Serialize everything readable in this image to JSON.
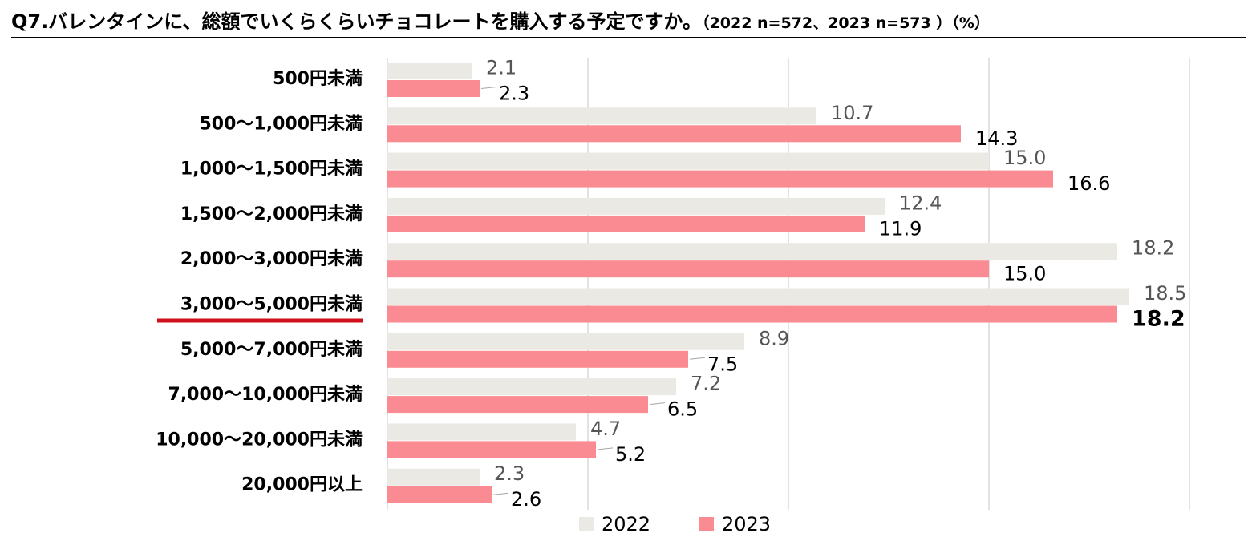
{
  "title": {
    "main": "Q7.バレンタインに、総額でいくらくらいチョコレートを購入する予定ですか。",
    "sub": "（2022 n=572、2023 n=573 ）（%）"
  },
  "chart_data": {
    "type": "bar",
    "orientation": "horizontal",
    "unit": "%",
    "xlim": [
      0,
      20
    ],
    "grid": true,
    "legend_position": "bottom-center",
    "highlighted_category": "3,000～5,000円未満",
    "categories": [
      "500円未満",
      "500～1,000円未満",
      "1,000～1,500円未満",
      "1,500～2,000円未満",
      "2,000～3,000円未満",
      "3,000～5,000円未満",
      "5,000～7,000円未満",
      "7,000～10,000円未満",
      "10,000～20,000円未満",
      "20,000円以上"
    ],
    "series": [
      {
        "name": "2022",
        "color": "#ebe9e3",
        "label_color": "#555555",
        "values": [
          2.1,
          10.7,
          15.0,
          12.4,
          18.2,
          18.5,
          8.9,
          7.2,
          4.7,
          2.3
        ],
        "labels": [
          "2.1",
          "10.7",
          "15.0",
          "12.4",
          "18.2",
          "18.5",
          "8.9",
          "7.2",
          "4.7",
          "2.3"
        ]
      },
      {
        "name": "2023",
        "color": "#fb8b93",
        "label_color": "#000000",
        "values": [
          2.3,
          14.3,
          16.6,
          11.9,
          15.0,
          18.2,
          7.5,
          6.5,
          5.2,
          2.6
        ],
        "labels": [
          "2.3",
          "14.3",
          "16.6",
          "11.9",
          "15.0",
          "18.2",
          "7.5",
          "6.5",
          "5.2",
          "2.6"
        ]
      }
    ]
  }
}
